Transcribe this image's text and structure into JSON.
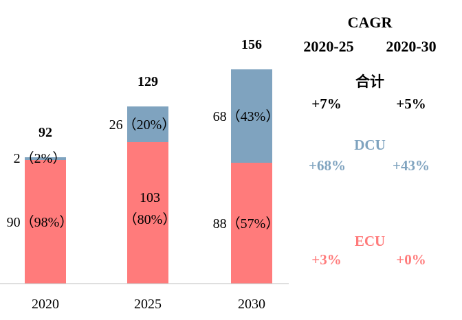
{
  "chart_data": {
    "type": "bar",
    "stacked": true,
    "categories": [
      "2020",
      "2025",
      "2030"
    ],
    "series": [
      {
        "name": "ECU",
        "values": [
          90,
          103,
          88
        ],
        "labels": [
          "90（98%）",
          "103",
          "88（57%）"
        ],
        "labels_line2": [
          "",
          "（80%）",
          ""
        ],
        "color": "#ff7b7b"
      },
      {
        "name": "DCU",
        "values": [
          2,
          26,
          68
        ],
        "labels": [
          "2（2%）",
          "26（20%）",
          "68（43%）"
        ],
        "color": "#7fa3bf"
      }
    ],
    "totals": [
      "92",
      "129",
      "156"
    ],
    "ylim": [
      0,
      165
    ]
  },
  "cagr": {
    "title": "CAGR",
    "period1": "2020-25",
    "period2": "2020-30",
    "groups": [
      {
        "name": "合计",
        "v1": "+7%",
        "v2": "+5%",
        "color": "#000000",
        "name_color": "#000000"
      },
      {
        "name": "DCU",
        "v1": "+68%",
        "v2": "+43%",
        "color": "#7fa3bf",
        "name_color": "#7fa3bf"
      },
      {
        "name": "ECU",
        "v1": "+3%",
        "v2": "+0%",
        "color": "#ff7b7b",
        "name_color": "#ff7b7b"
      }
    ]
  }
}
